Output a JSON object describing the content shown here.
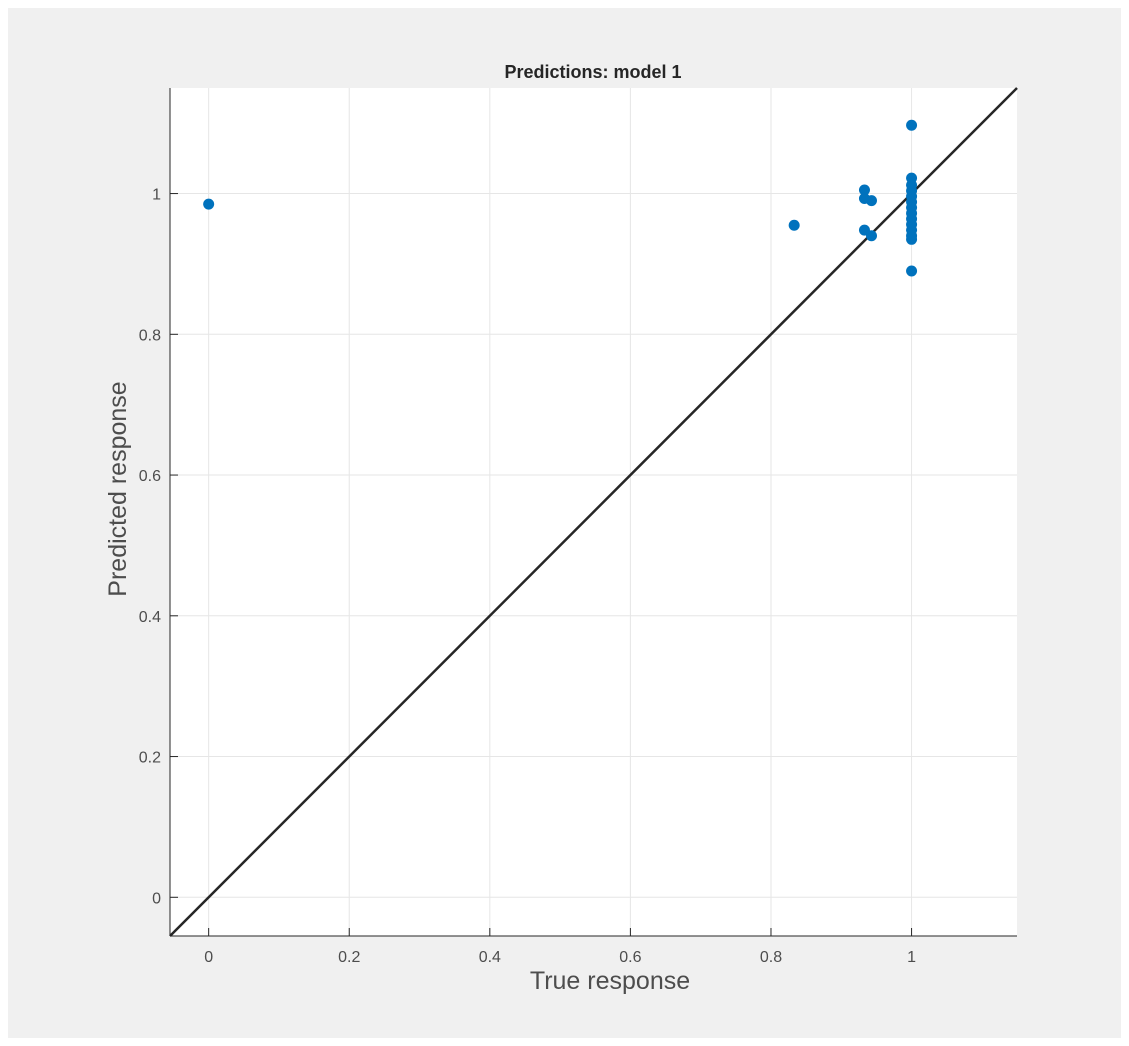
{
  "chart_data": {
    "type": "scatter",
    "title": "Predictions: model 1",
    "xlabel": "True response",
    "ylabel": "Predicted response",
    "xlim": [
      -0.055,
      1.15
    ],
    "ylim": [
      -0.055,
      1.15
    ],
    "xticks": [
      0,
      0.2,
      0.4,
      0.6,
      0.8,
      1
    ],
    "yticks": [
      0,
      0.2,
      0.4,
      0.6,
      0.8,
      1
    ],
    "xtick_labels": [
      "0",
      "0.2",
      "0.4",
      "0.6",
      "0.8",
      "1"
    ],
    "ytick_labels": [
      "0",
      "0.2",
      "0.4",
      "0.6",
      "0.8",
      "1"
    ],
    "grid": true,
    "reference_line": {
      "from": [
        -0.055,
        -0.055
      ],
      "to": [
        1.15,
        1.15
      ],
      "color": "#262626"
    },
    "marker_color": "#0072bd",
    "points": [
      {
        "x": 0.0,
        "y": 0.985
      },
      {
        "x": 0.833,
        "y": 0.955
      },
      {
        "x": 0.933,
        "y": 1.005
      },
      {
        "x": 0.933,
        "y": 0.993
      },
      {
        "x": 0.933,
        "y": 0.948
      },
      {
        "x": 0.943,
        "y": 0.99
      },
      {
        "x": 0.943,
        "y": 0.94
      },
      {
        "x": 1.0,
        "y": 1.097
      },
      {
        "x": 1.0,
        "y": 1.022
      },
      {
        "x": 1.0,
        "y": 1.012
      },
      {
        "x": 1.0,
        "y": 1.004
      },
      {
        "x": 1.0,
        "y": 0.996
      },
      {
        "x": 1.0,
        "y": 0.988
      },
      {
        "x": 1.0,
        "y": 0.98
      },
      {
        "x": 1.0,
        "y": 0.972
      },
      {
        "x": 1.0,
        "y": 0.964
      },
      {
        "x": 1.0,
        "y": 0.956
      },
      {
        "x": 1.0,
        "y": 0.948
      },
      {
        "x": 1.0,
        "y": 0.94
      },
      {
        "x": 1.0,
        "y": 0.935
      },
      {
        "x": 1.0,
        "y": 0.89
      }
    ]
  }
}
